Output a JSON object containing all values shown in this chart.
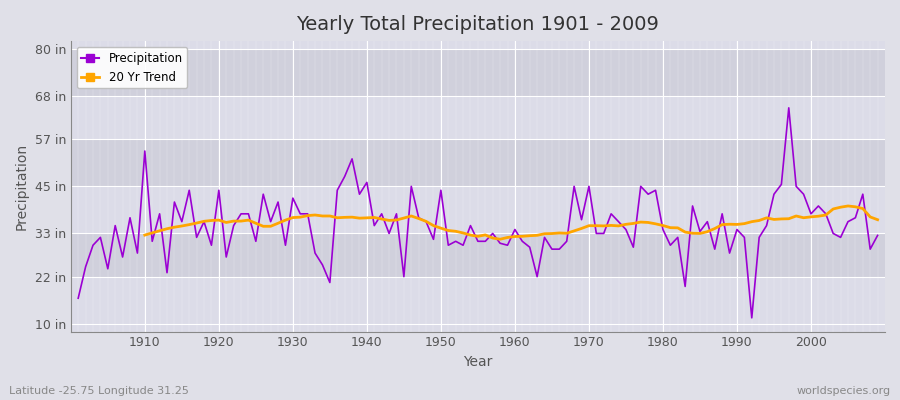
{
  "title": "Yearly Total Precipitation 1901 - 2009",
  "xlabel": "Year",
  "ylabel": "Precipitation",
  "subtitle_left": "Latitude -25.75 Longitude 31.25",
  "subtitle_right": "worldspecies.org",
  "years": [
    1901,
    1902,
    1903,
    1904,
    1905,
    1906,
    1907,
    1908,
    1909,
    1910,
    1911,
    1912,
    1913,
    1914,
    1915,
    1916,
    1917,
    1918,
    1919,
    1920,
    1921,
    1922,
    1923,
    1924,
    1925,
    1926,
    1927,
    1928,
    1929,
    1930,
    1931,
    1932,
    1933,
    1934,
    1935,
    1936,
    1937,
    1938,
    1939,
    1940,
    1941,
    1942,
    1943,
    1944,
    1945,
    1946,
    1947,
    1948,
    1949,
    1950,
    1951,
    1952,
    1953,
    1954,
    1955,
    1956,
    1957,
    1958,
    1959,
    1960,
    1961,
    1962,
    1963,
    1964,
    1965,
    1966,
    1967,
    1968,
    1969,
    1970,
    1971,
    1972,
    1973,
    1974,
    1975,
    1976,
    1977,
    1978,
    1979,
    1980,
    1981,
    1982,
    1983,
    1984,
    1985,
    1986,
    1987,
    1988,
    1989,
    1990,
    1991,
    1992,
    1993,
    1994,
    1995,
    1996,
    1997,
    1998,
    1999,
    2000,
    2001,
    2002,
    2003,
    2004,
    2005,
    2006,
    2007,
    2008,
    2009
  ],
  "precipitation_in": [
    16.5,
    24.5,
    30.0,
    32.0,
    24.0,
    35.0,
    27.0,
    37.0,
    28.0,
    54.0,
    31.0,
    38.0,
    23.0,
    41.0,
    36.0,
    44.0,
    32.0,
    36.0,
    30.0,
    44.0,
    27.0,
    35.0,
    38.0,
    38.0,
    31.0,
    43.0,
    36.0,
    41.0,
    30.0,
    42.0,
    38.0,
    38.0,
    28.0,
    25.0,
    20.5,
    44.0,
    47.5,
    52.0,
    43.0,
    46.0,
    35.0,
    38.0,
    33.0,
    38.0,
    22.0,
    45.0,
    37.0,
    36.0,
    31.5,
    44.0,
    30.0,
    31.0,
    30.0,
    35.0,
    31.0,
    31.0,
    33.0,
    30.5,
    30.0,
    34.0,
    31.0,
    29.5,
    22.0,
    32.0,
    29.0,
    29.0,
    31.0,
    45.0,
    36.5,
    45.0,
    33.0,
    33.0,
    38.0,
    36.0,
    34.0,
    29.5,
    45.0,
    43.0,
    44.0,
    34.0,
    30.0,
    32.0,
    19.5,
    40.0,
    33.5,
    36.0,
    29.0,
    38.0,
    28.0,
    34.0,
    32.0,
    11.5,
    32.0,
    35.0,
    43.0,
    45.5,
    65.0,
    45.0,
    43.0,
    38.0,
    40.0,
    38.0,
    33.0,
    32.0,
    36.0,
    37.0,
    43.0,
    29.0,
    32.5
  ],
  "precip_color": "#9B00D3",
  "trend_color": "#FFA500",
  "bg_color": "#E0E0E8",
  "band_color_light": "#DCDCE8",
  "band_color_dark": "#D0D0DC",
  "grid_color": "#FFFFFF",
  "yticks": [
    10,
    22,
    33,
    45,
    57,
    68,
    80
  ],
  "ytick_labels": [
    "10 in",
    "22 in",
    "33 in",
    "45 in",
    "57 in",
    "68 in",
    "80 in"
  ],
  "ylim": [
    8,
    82
  ],
  "xlim": [
    1900,
    2010
  ],
  "xticks": [
    1910,
    1920,
    1930,
    1940,
    1950,
    1960,
    1970,
    1980,
    1990,
    2000
  ],
  "legend_precip": "Precipitation",
  "legend_trend": "20 Yr Trend",
  "title_fontsize": 14,
  "axis_label_fontsize": 10,
  "tick_fontsize": 9
}
